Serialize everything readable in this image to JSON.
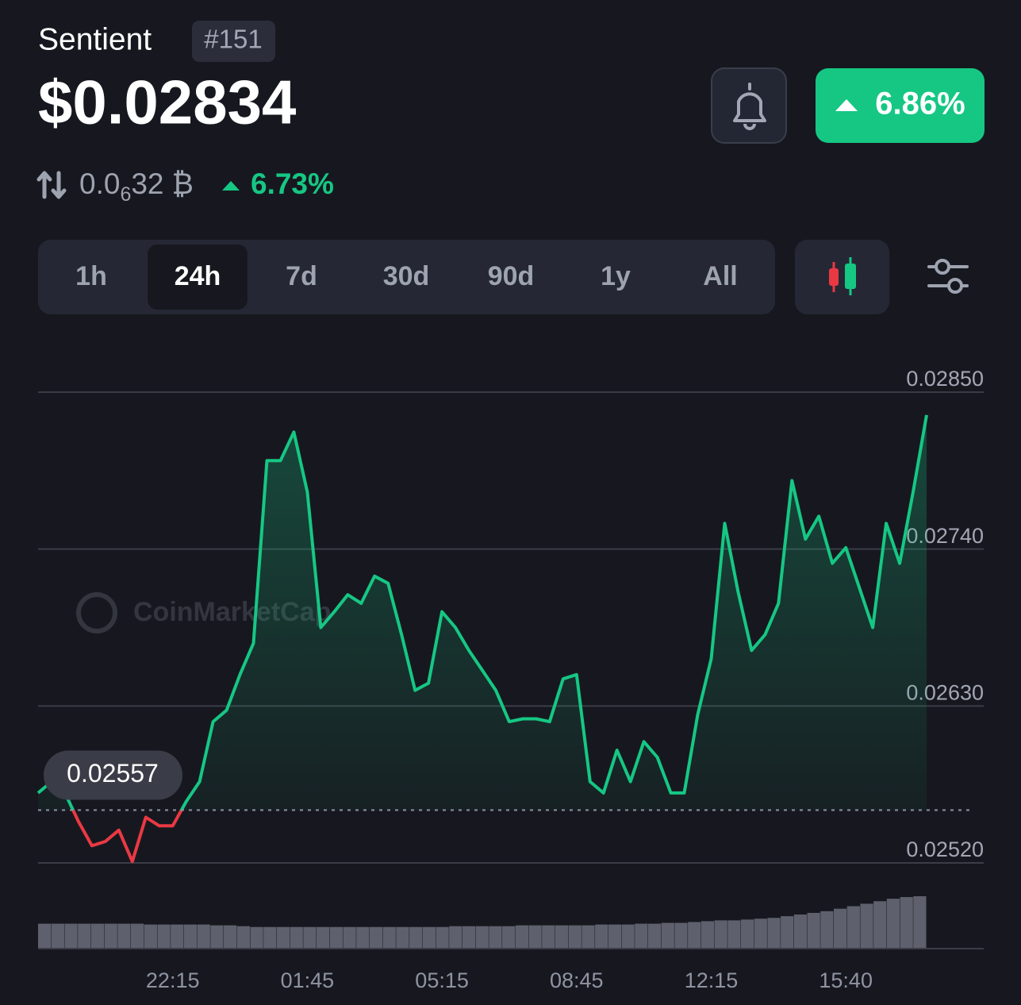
{
  "header": {
    "name": "Sentient",
    "rank": "#151",
    "price": "$0.02834",
    "change_24h": "6.86%",
    "btc_price": {
      "prefix": "0.0",
      "zeros": "6",
      "digits": "32",
      "symbol": "₿"
    },
    "btc_change": "6.73%"
  },
  "range_tabs": {
    "items": [
      "1h",
      "24h",
      "7d",
      "30d",
      "90d",
      "1y",
      "All"
    ],
    "selected": 1
  },
  "chart_data": {
    "type": "line",
    "watermark": "CoinMarketCap",
    "categories": [
      null,
      null,
      null,
      null,
      null,
      null,
      null,
      null,
      null,
      null,
      "22:15",
      null,
      null,
      null,
      null,
      null,
      null,
      null,
      null,
      null,
      "01:45",
      null,
      null,
      null,
      null,
      null,
      null,
      null,
      null,
      null,
      "05:15",
      null,
      null,
      null,
      null,
      null,
      null,
      null,
      null,
      null,
      "08:45",
      null,
      null,
      null,
      null,
      null,
      null,
      null,
      null,
      null,
      "12:15",
      null,
      null,
      null,
      null,
      null,
      null,
      null,
      null,
      null,
      "15:40",
      null,
      null,
      null,
      null,
      null,
      null
    ],
    "series": [
      {
        "color": "#16c784",
        "below_color": "#ea3943",
        "values": [
          0.02569,
          0.02577,
          0.02569,
          0.02549,
          0.02532,
          0.02535,
          0.02543,
          0.02521,
          0.02552,
          0.02546,
          0.02546,
          0.02563,
          0.02577,
          0.02619,
          0.02627,
          0.02652,
          0.02674,
          0.02802,
          0.02802,
          0.02822,
          0.0278,
          0.02685,
          0.02696,
          0.02708,
          0.02702,
          0.02721,
          0.02716,
          0.0268,
          0.02641,
          0.02646,
          0.02696,
          0.02685,
          0.02669,
          0.02655,
          0.02641,
          0.02619,
          0.02621,
          0.02621,
          0.02619,
          0.02649,
          0.02652,
          0.02577,
          0.02569,
          0.02599,
          0.02577,
          0.02605,
          0.02594,
          0.02569,
          0.02569,
          0.02624,
          0.02663,
          0.02758,
          0.0271,
          0.02669,
          0.0268,
          0.02702,
          0.02788,
          0.02747,
          0.02763,
          0.0273,
          0.02741,
          0.02713,
          0.02685,
          0.02758,
          0.0273,
          0.0278,
          0.02834
        ]
      }
    ],
    "volume": [
      30,
      30,
      30,
      30,
      30,
      30,
      30,
      30,
      29,
      29,
      29,
      29,
      29,
      28,
      28,
      27,
      26,
      26,
      26,
      26,
      26,
      26,
      26,
      26,
      26,
      26,
      26,
      26,
      26,
      26,
      26,
      27,
      27,
      27,
      27,
      27,
      28,
      28,
      28,
      28,
      28,
      28,
      29,
      29,
      29,
      30,
      30,
      31,
      31,
      32,
      33,
      34,
      34,
      35,
      36,
      37,
      39,
      41,
      43,
      45,
      48,
      51,
      54,
      57,
      60,
      62,
      63
    ],
    "baseline": 0.02557,
    "ylim": [
      0.0252,
      0.0285
    ],
    "yticks": [
      {
        "value": 0.0285,
        "label": "0.02850"
      },
      {
        "value": 0.0274,
        "label": "0.02740"
      },
      {
        "value": 0.0263,
        "label": "0.02630"
      },
      {
        "value": 0.0252,
        "label": "0.02520"
      }
    ],
    "grid": true
  }
}
